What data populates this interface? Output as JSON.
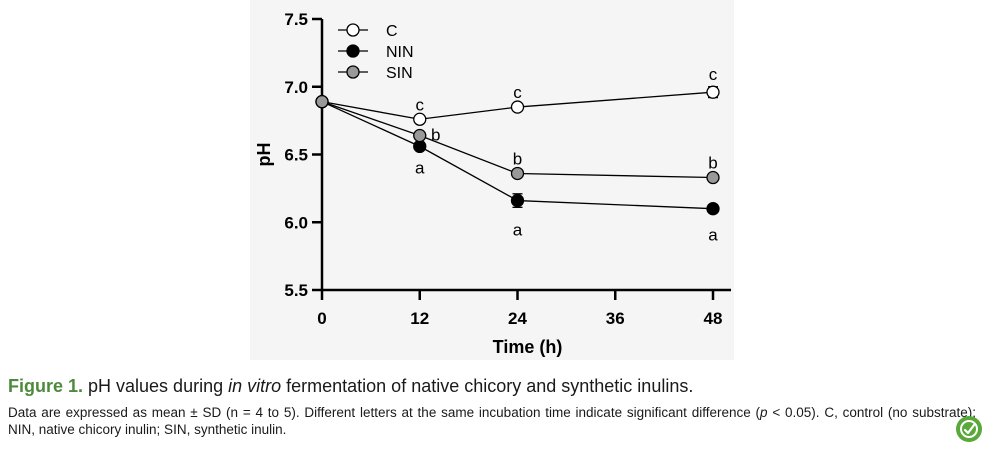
{
  "chart_data": {
    "type": "line",
    "xlabel": "Time (h)",
    "ylabel": "pH",
    "xlim": [
      0,
      48
    ],
    "ylim": [
      5.5,
      7.5
    ],
    "xticks": [
      0,
      12,
      24,
      36,
      48
    ],
    "yticks": [
      5.5,
      6.0,
      6.5,
      7.0,
      7.5
    ],
    "x_tick_labels": [
      "0",
      "12",
      "24",
      "36",
      "48"
    ],
    "y_tick_labels": [
      "5.5",
      "6.0",
      "6.5",
      "7.0",
      "7.5"
    ],
    "grid": false,
    "legend_position": "top-left",
    "series": [
      {
        "name": "C",
        "marker": "open",
        "color": "#ffffff",
        "x": [
          0,
          12,
          24,
          48
        ],
        "values": [
          6.89,
          6.76,
          6.85,
          6.96
        ],
        "error": [
          0,
          0.01,
          0.01,
          0.04
        ],
        "letters": [
          "",
          "c",
          "c",
          "c"
        ]
      },
      {
        "name": "NIN",
        "marker": "filled",
        "color": "#000000",
        "x": [
          0,
          12,
          24,
          48
        ],
        "values": [
          6.89,
          6.56,
          6.16,
          6.1
        ],
        "error": [
          0,
          0.02,
          0.05,
          0.03
        ],
        "letters": [
          "",
          "a",
          "a",
          "a"
        ]
      },
      {
        "name": "SIN",
        "marker": "filled",
        "color": "#999999",
        "x": [
          0,
          12,
          24,
          48
        ],
        "values": [
          6.89,
          6.64,
          6.36,
          6.33
        ],
        "error": [
          0,
          0.01,
          0.01,
          0.01
        ],
        "letters": [
          "",
          "b",
          "b",
          "b"
        ]
      }
    ]
  },
  "caption": {
    "figure_number": "Figure 1.",
    "title_before": " pH values during ",
    "title_italic": "in vitro",
    "title_after": " fermentation of native chicory and synthetic inulins.",
    "note_line_1": "Data are expressed as mean ± SD (n = 4 to 5). Different letters at the same incubation time indicate significant difference (",
    "note_p": "p",
    "note_line_2": " < 0.05). C, control (no substrate); NIN, native chicory inulin; SIN, synthetic inulin."
  },
  "icons": {
    "badge": "leaf-badge-icon"
  }
}
